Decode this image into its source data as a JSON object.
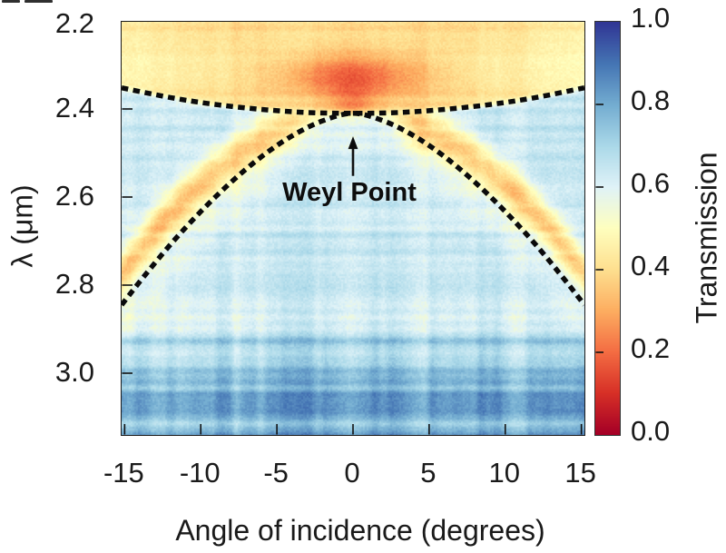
{
  "figure": {
    "background": "#ffffff"
  },
  "axes": {
    "x": {
      "title": "Angle of incidence (degrees)",
      "unit": "degrees",
      "range": [
        -15.2,
        15.2
      ],
      "ticks": [
        {
          "value": -15,
          "label": "-15"
        },
        {
          "value": -10,
          "label": "-10"
        },
        {
          "value": -5,
          "label": "-5"
        },
        {
          "value": 0,
          "label": "0"
        },
        {
          "value": 5,
          "label": "5"
        },
        {
          "value": 10,
          "label": "10"
        },
        {
          "value": 15,
          "label": "15"
        }
      ]
    },
    "y": {
      "title": "λ (μm)",
      "unit": "μm",
      "range": [
        2.2,
        3.14
      ],
      "inverted": true,
      "ticks": [
        {
          "value": 2.2,
          "label": "2.2"
        },
        {
          "value": 2.4,
          "label": "2.4"
        },
        {
          "value": 2.6,
          "label": "2.6"
        },
        {
          "value": 2.8,
          "label": "2.8"
        },
        {
          "value": 3.0,
          "label": "3.0"
        }
      ]
    }
  },
  "colorbar": {
    "title": "Transmission",
    "range": [
      0,
      1
    ],
    "ticks": [
      {
        "value": 1.0,
        "label": "1.0"
      },
      {
        "value": 0.8,
        "label": "0.8"
      },
      {
        "value": 0.6,
        "label": "0.6"
      },
      {
        "value": 0.4,
        "label": "0.4"
      },
      {
        "value": 0.2,
        "label": "0.2"
      },
      {
        "value": 0.0,
        "label": "0.0"
      }
    ]
  },
  "annotation": {
    "label": "Weyl Point",
    "arrow": {
      "angle_deg": 0,
      "tip_wavelength_um": 2.462,
      "tail_wavelength_um": 2.552
    }
  },
  "chart_data": {
    "type": "heatmap",
    "title": "",
    "xlabel": "Angle of incidence (degrees)",
    "ylabel": "λ (μm)",
    "colorbar_label": "Transmission",
    "x_range": [
      -15.2,
      15.2
    ],
    "y_range": [
      2.2,
      3.14
    ],
    "value_range": [
      0,
      1
    ],
    "colormap": {
      "name": "RdYlBu",
      "stops": [
        {
          "value": 0.0,
          "color": "#a50026"
        },
        {
          "value": 0.1,
          "color": "#d73027"
        },
        {
          "value": 0.2,
          "color": "#f46d43"
        },
        {
          "value": 0.3,
          "color": "#fdae61"
        },
        {
          "value": 0.4,
          "color": "#fee090"
        },
        {
          "value": 0.5,
          "color": "#ffffbf"
        },
        {
          "value": 0.6,
          "color": "#e0f3f8"
        },
        {
          "value": 0.7,
          "color": "#abd9e9"
        },
        {
          "value": 0.8,
          "color": "#74add1"
        },
        {
          "value": 0.9,
          "color": "#4575b4"
        },
        {
          "value": 1.0,
          "color": "#313695"
        }
      ]
    },
    "weyl_point": {
      "angle_deg": 0,
      "wavelength_um": 2.41
    },
    "dashed_curves": {
      "upper_branch": [
        [
          -15.2,
          2.352
        ],
        [
          -12,
          2.374
        ],
        [
          -9,
          2.39
        ],
        [
          -6,
          2.401
        ],
        [
          -3,
          2.408
        ],
        [
          0,
          2.41
        ],
        [
          3,
          2.408
        ],
        [
          6,
          2.401
        ],
        [
          9,
          2.39
        ],
        [
          12,
          2.374
        ],
        [
          15.2,
          2.352
        ]
      ],
      "lower_branch": [
        [
          -15.2,
          2.845
        ],
        [
          -14,
          2.792
        ],
        [
          -12,
          2.708
        ],
        [
          -10,
          2.633
        ],
        [
          -8,
          2.566
        ],
        [
          -6,
          2.508
        ],
        [
          -4,
          2.461
        ],
        [
          -2,
          2.427
        ],
        [
          0,
          2.41
        ],
        [
          2,
          2.427
        ],
        [
          4,
          2.461
        ],
        [
          6,
          2.508
        ],
        [
          8,
          2.566
        ],
        [
          10,
          2.633
        ],
        [
          12,
          2.708
        ],
        [
          14,
          2.792
        ],
        [
          15.2,
          2.845
        ]
      ]
    },
    "features": {
      "background_transmission": 0.635,
      "bottom_region": {
        "wavelength_above_um": 2.9,
        "transmission": 0.76
      },
      "top_low_transmission_band": {
        "wavelength_range_um": [
          2.2,
          2.41
        ],
        "transmission": 0.4
      },
      "absorption_core": {
        "angle_deg": 0,
        "wavelength_um": 2.325,
        "transmission": 0.15
      },
      "conical_bands": {
        "transmission": 0.36,
        "follows": "lower_branch",
        "offset_um": -0.05
      }
    }
  }
}
